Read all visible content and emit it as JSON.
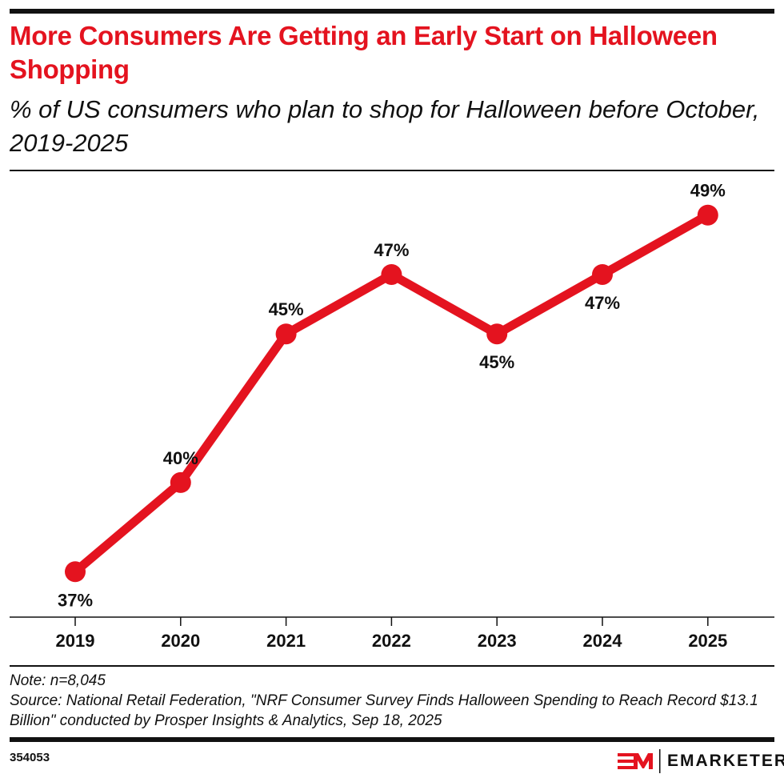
{
  "title": "More Consumers Are Getting an Early Start on Halloween Shopping",
  "subtitle": "% of US consumers who plan to shop for Halloween before October, 2019-2025",
  "chart_data": {
    "type": "line",
    "categories": [
      "2019",
      "2020",
      "2021",
      "2022",
      "2023",
      "2024",
      "2025"
    ],
    "series": [
      {
        "values": [
          37,
          40,
          45,
          47,
          45,
          47,
          49
        ]
      }
    ],
    "data_labels": [
      "37%",
      "40%",
      "45%",
      "47%",
      "45%",
      "47%",
      "49%"
    ],
    "label_positions": [
      "below",
      "above",
      "above",
      "above",
      "below",
      "below",
      "above"
    ],
    "ylim": [
      35.5,
      50.5
    ],
    "grid": false,
    "color": "#e4131f"
  },
  "note": "Note: n=8,045",
  "source": "Source: National Retail Federation, \"NRF Consumer Survey Finds Halloween Spending to Reach Record $13.1 Billion\" conducted by Prosper Insights & Analytics, Sep 18, 2025",
  "chart_id": "354053",
  "logo": {
    "text": "EMARKETER",
    "mark": "EM"
  }
}
